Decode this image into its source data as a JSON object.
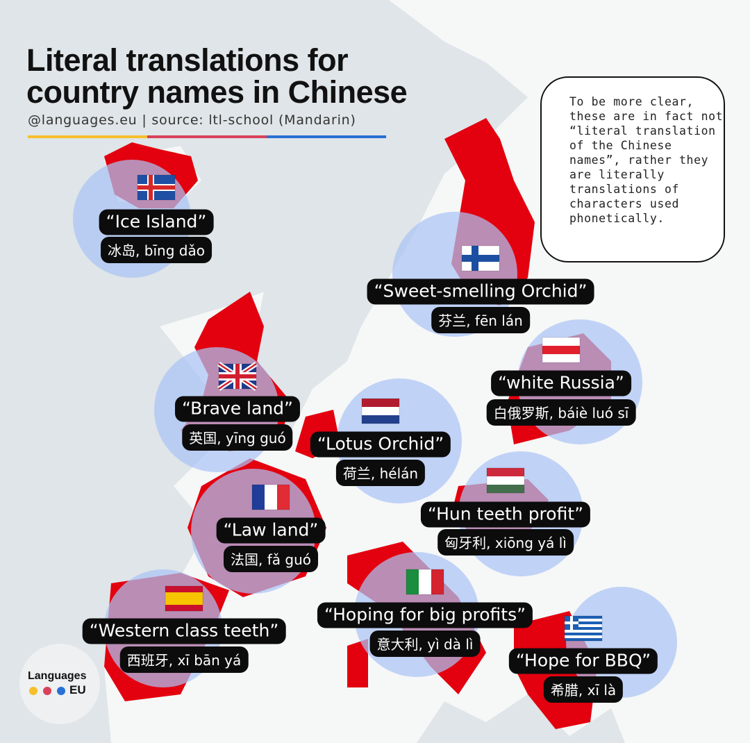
{
  "header": {
    "title": "Literal translations for country names in Chinese",
    "subtitle": "@languages.eu | source: ltl-school (Mandarin)"
  },
  "note": "To be more clear, these are in fact not “literal translation of the Chinese names”, rather they are literally translations of characters used phonetically.",
  "countries": [
    {
      "english": "“Ice Island”",
      "chinese": "冰岛, bīng dǎo"
    },
    {
      "english": "“Sweet-smelling Orchid”",
      "chinese": "芬兰, fēn lán"
    },
    {
      "english": "“white Russia”",
      "chinese": "白俄罗斯, báiè luó sī"
    },
    {
      "english": "“Brave land”",
      "chinese": "英国, yīng guó"
    },
    {
      "english": "“Lotus Orchid”",
      "chinese": "荷兰, hélán"
    },
    {
      "english": "“Hun teeth profit”",
      "chinese": "匈牙利, xiōng yá lì"
    },
    {
      "english": "“Law land”",
      "chinese": "法国, fǎ guó"
    },
    {
      "english": "“Western class teeth”",
      "chinese": "西班牙, xī bān yá"
    },
    {
      "english": "“Hoping for big profits”",
      "chinese": "意大利, yì dà lì"
    },
    {
      "english": "“Hope for BBQ”",
      "chinese": "希腊, xī là"
    }
  ],
  "logo": {
    "name": "Languages",
    "suffix": "EU"
  }
}
